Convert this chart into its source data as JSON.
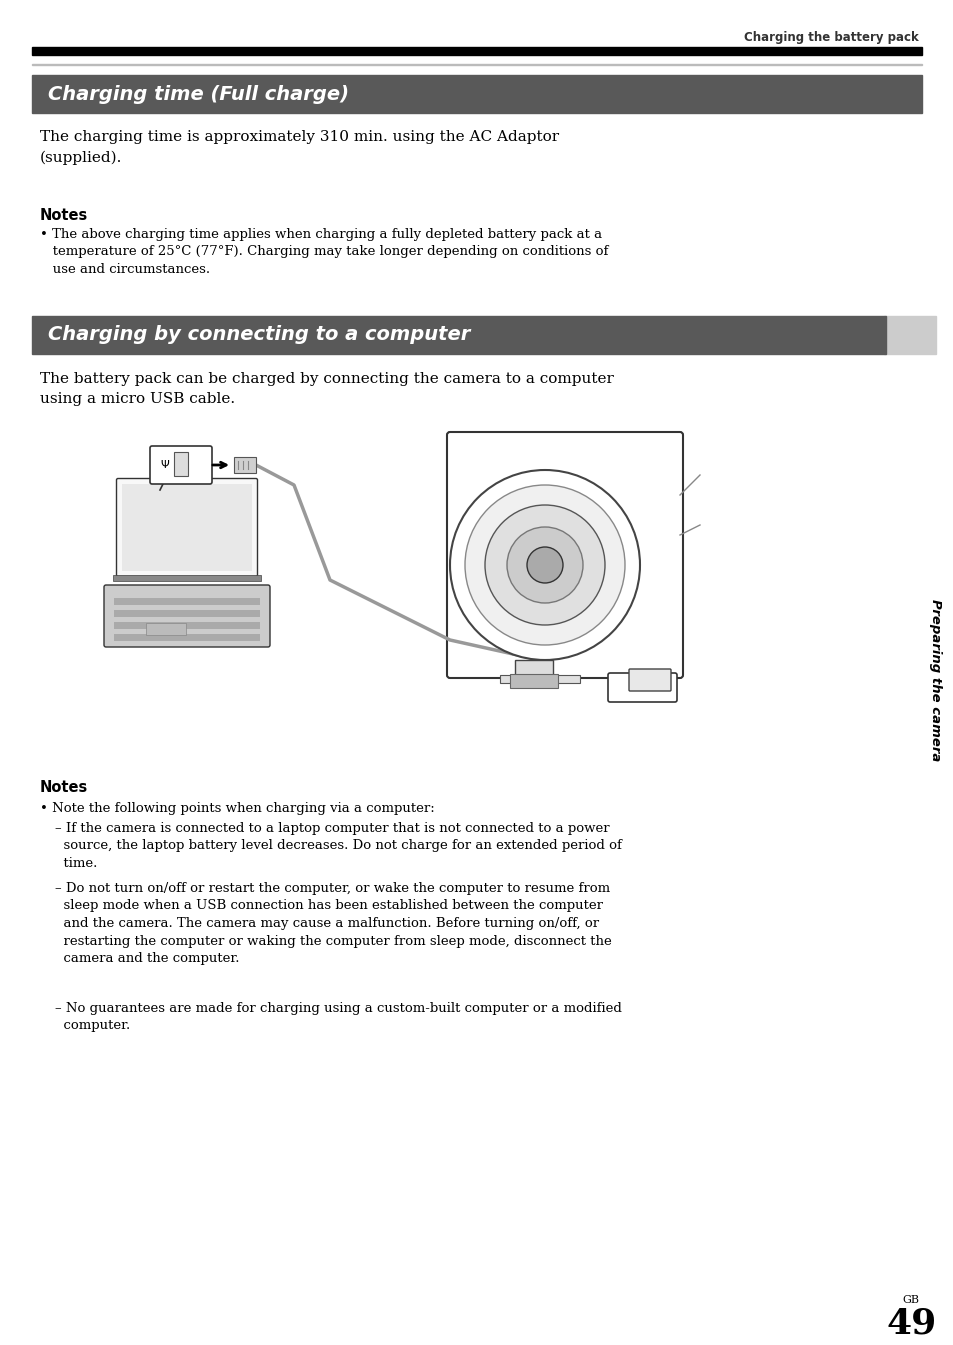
{
  "page_bg": "#ffffff",
  "top_header_text": "Charging the battery pack",
  "top_header_color": "#333333",
  "header_bar_color": "#000000",
  "section1_bg": "#595959",
  "section1_title": "Charging time (Full charge)",
  "section1_title_color": "#ffffff",
  "section2_bg": "#595959",
  "section2_title": "Charging by connecting to a computer",
  "section2_title_color": "#ffffff",
  "section2_tab_color": "#cccccc",
  "body_text_color": "#000000",
  "notes_bold_color": "#000000",
  "paragraph1": "The charging time is approximately 310 min. using the AC Adaptor\n(supplied).",
  "notes1_label": "Notes",
  "notes1_bullet": "• The above charging time applies when charging a fully depleted battery pack at a\n   temperature of 25°C (77°F). Charging may take longer depending on conditions of\n   use and circumstances.",
  "paragraph2": "The battery pack can be charged by connecting the camera to a computer\nusing a micro USB cable.",
  "notes2_label": "Notes",
  "notes2_bullet1": "• Note the following points when charging via a computer:",
  "notes2_sub1": "– If the camera is connected to a laptop computer that is not connected to a power\n  source, the laptop battery level decreases. Do not charge for an extended period of\n  time.",
  "notes2_sub2": "– Do not turn on/off or restart the computer, or wake the computer to resume from\n  sleep mode when a USB connection has been established between the computer\n  and the camera. The camera may cause a malfunction. Before turning on/off, or\n  restarting the computer or waking the computer from sleep mode, disconnect the\n  camera and the computer.",
  "notes2_sub3": "– No guarantees are made for charging using a custom-built computer or a modified\n  computer.",
  "sidebar_text": "Preparing the camera",
  "sidebar_color": "#000000",
  "page_num_gb": "GB",
  "page_num": "49"
}
